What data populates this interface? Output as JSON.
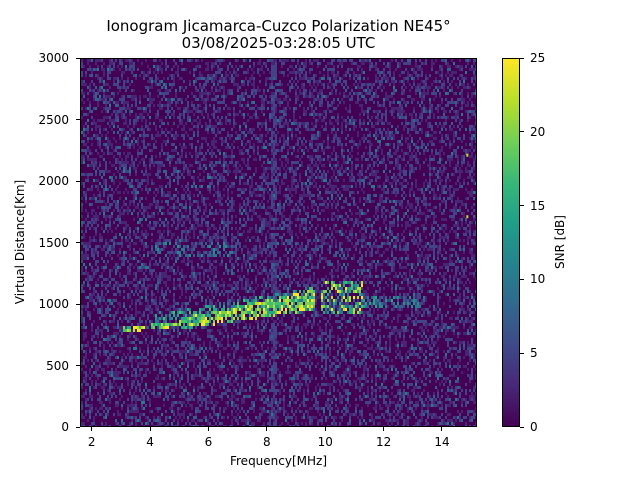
{
  "chart_data": {
    "type": "heatmap",
    "title": "Ionogram Jicamarca-Cuzco Polarization NE45°",
    "subtitle": "03/08/2025-03:28:05 UTC",
    "xlabel": "Frequency[MHz]",
    "ylabel": "Virtual Distance[Km]",
    "colorbar_label": "SNR [dB]",
    "colormap": "viridis",
    "xlim": [
      1.6,
      15.2
    ],
    "ylim": [
      0,
      3000
    ],
    "clim": [
      0,
      25
    ],
    "x_ticks": [
      2,
      4,
      6,
      8,
      10,
      12,
      14
    ],
    "y_ticks": [
      0,
      500,
      1000,
      1500,
      2000,
      2500,
      3000
    ],
    "colorbar_ticks": [
      0,
      5,
      10,
      15,
      20,
      25
    ],
    "grid": false,
    "features": [
      {
        "name": "main echo trace (strong)",
        "freq_start": 3.0,
        "freq_end": 5.0,
        "dist_start": 810,
        "dist_end": 860,
        "snr": 25
      },
      {
        "name": "echo trace band",
        "freq_start": 5.0,
        "freq_end": 9.5,
        "dist_start": 860,
        "dist_end": 1060,
        "snr": 22
      },
      {
        "name": "diffuse echo cluster",
        "freq_start": 9.8,
        "freq_end": 11.2,
        "dist_start": 950,
        "dist_end": 1200,
        "snr": 20
      },
      {
        "name": "weak extension",
        "freq_start": 11.2,
        "freq_end": 13.2,
        "dist_start": 1000,
        "dist_end": 1080,
        "snr": 10
      },
      {
        "name": "second-hop faint echo",
        "freq_start": 4.0,
        "freq_end": 7.0,
        "dist_start": 1420,
        "dist_end": 1520,
        "snr": 8
      },
      {
        "name": "interference stripe",
        "freq": 8.2,
        "snr": 4
      },
      {
        "name": "isolated points",
        "points": [
          [
            14.8,
            2230
          ],
          [
            14.8,
            1730
          ]
        ],
        "snr": 23
      }
    ],
    "background_snr": 1
  },
  "labels": {
    "title": "Ionogram Jicamarca-Cuzco Polarization NE45°",
    "subtitle": "03/08/2025-03:28:05 UTC",
    "xlabel": "Frequency[MHz]",
    "ylabel": "Virtual Distance[Km]",
    "clabel": "SNR [dB]",
    "xticks": [
      "2",
      "4",
      "6",
      "8",
      "10",
      "12",
      "14"
    ],
    "yticks": [
      "0",
      "500",
      "1000",
      "1500",
      "2000",
      "2500",
      "3000"
    ],
    "cticks": [
      "0",
      "5",
      "10",
      "15",
      "20",
      "25"
    ]
  }
}
